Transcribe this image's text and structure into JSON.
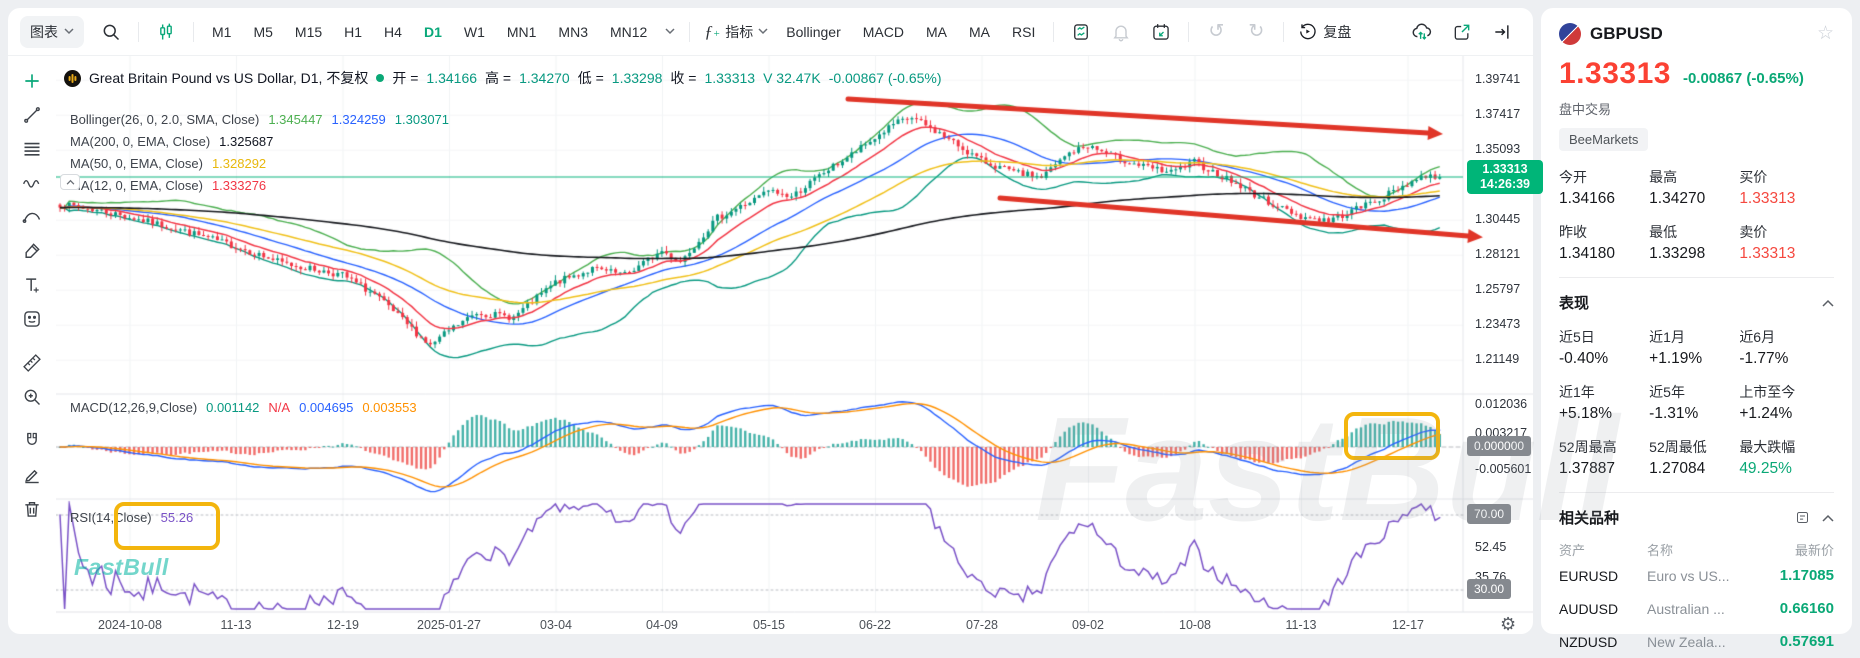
{
  "app": {
    "watermark_big": "FastBull",
    "watermark_logo": "FastBull"
  },
  "toolbar": {
    "chart_menu_label": "图表",
    "timeframes": [
      "M1",
      "M5",
      "M15",
      "H1",
      "H4",
      "D1",
      "W1",
      "MN1",
      "MN3",
      "MN12"
    ],
    "active_timeframe": "D1",
    "indicators_label": "指标",
    "indicator_shortcuts": [
      "Bollinger",
      "MACD",
      "MA",
      "MA",
      "RSI"
    ],
    "replay_label": "复盘"
  },
  "chart": {
    "header": {
      "title": "Great Britain Pound vs US Dollar, D1, 不复权",
      "open_label": "开 =",
      "open": "1.34166",
      "high_label": "高 =",
      "high": "1.34270",
      "low_label": "低 =",
      "low": "1.33298",
      "close_label": "收 =",
      "close": "1.33313",
      "volume": "V 32.47K",
      "change": "-0.00867 (-0.65%)"
    },
    "legends": {
      "bollinger": {
        "name": "Bollinger(26, 0, 2.0, SMA, Close)",
        "upper": "1.345447",
        "middle": "1.324259",
        "lower": "1.303071"
      },
      "ma200": {
        "name": "MA(200, 0, EMA, Close)",
        "value": "1.325687"
      },
      "ma50": {
        "name": "MA(50, 0, EMA, Close)",
        "value": "1.328292"
      },
      "ma12": {
        "name": "MA(12, 0, EMA, Close)",
        "value": "1.333276"
      },
      "macd": {
        "name": "MACD(12,26,9,Close)",
        "macd": "0.001142",
        "na": "N/A",
        "signal": "0.004695",
        "hist": "0.003553"
      },
      "rsi": {
        "name": "RSI(14,Close)",
        "value": "55.26"
      }
    },
    "price_axis": {
      "ticks": [
        "1.39741",
        "1.37417",
        "1.35093",
        "1.30445",
        "1.28121",
        "1.25797",
        "1.23473",
        "1.21149"
      ],
      "last_badge": {
        "price": "1.33313",
        "time": "14:26:39"
      }
    },
    "macd_axis": {
      "ticks": [
        "0.012036",
        "0.003217",
        "-0.005601"
      ],
      "zero_badge": "0.000000"
    },
    "rsi_axis": {
      "upper_badge": "70.00",
      "mid_ticks": [
        "52.45",
        "35.76"
      ],
      "lower_badge": "30.00"
    },
    "time_axis": [
      "2024-10-08",
      "11-13",
      "12-19",
      "2025-01-27",
      "03-04",
      "04-09",
      "05-15",
      "06-22",
      "07-28",
      "09-02",
      "10-08",
      "11-13",
      "12-17"
    ]
  },
  "sidebar": {
    "symbol": "GBPUSD",
    "price": "1.33313",
    "change": "-0.00867  (-0.65%)",
    "session_label": "盘中交易",
    "broker": "BeeMarkets",
    "stats": [
      {
        "label": "今开",
        "value": "1.34166"
      },
      {
        "label": "最高",
        "value": "1.34270"
      },
      {
        "label": "买价",
        "value": "1.33313"
      },
      {
        "label": "昨收",
        "value": "1.34180"
      },
      {
        "label": "最低",
        "value": "1.33298"
      },
      {
        "label": "卖价",
        "value": "1.33313"
      }
    ],
    "performance": {
      "title": "表现",
      "items": [
        {
          "label": "近5日",
          "value": "-0.40%"
        },
        {
          "label": "近1月",
          "value": "+1.19%"
        },
        {
          "label": "近6月",
          "value": "-1.77%"
        },
        {
          "label": "近1年",
          "value": "+5.18%"
        },
        {
          "label": "近5年",
          "value": "-1.31%"
        },
        {
          "label": "上市至今",
          "value": "+1.24%"
        },
        {
          "label": "52周最高",
          "value": "1.37887"
        },
        {
          "label": "52周最低",
          "value": "1.27084"
        },
        {
          "label": "最大跌幅",
          "value": "49.25%"
        }
      ]
    },
    "related": {
      "title": "相关品种",
      "columns": [
        "资产",
        "名称",
        "最新价"
      ],
      "rows": [
        {
          "asset": "EURUSD",
          "name": "Euro vs US...",
          "price": "1.17085"
        },
        {
          "asset": "AUDUSD",
          "name": "Australian ...",
          "price": "0.66160"
        },
        {
          "asset": "NZDUSD",
          "name": "New Zeala...",
          "price": "0.57691"
        }
      ]
    }
  },
  "chart_data": {
    "type": "candlestick",
    "symbol": "GBPUSD",
    "timeframe": "D1",
    "last_bar": {
      "open": 1.34166,
      "high": 1.3427,
      "low": 1.33298,
      "close": 1.33313,
      "volume": "32.47K",
      "change": -0.00867,
      "change_pct": "-0.65%"
    },
    "price_axis_ticks": [
      1.39741,
      1.37417,
      1.35093,
      1.30445,
      1.28121,
      1.25797,
      1.23473,
      1.21149
    ],
    "current_price": 1.33313,
    "time_ticks": [
      "2024-10-08",
      "11-13",
      "12-19",
      "2025-01-27",
      "03-04",
      "04-09",
      "05-15",
      "06-22",
      "07-28",
      "09-02",
      "10-08",
      "11-13",
      "12-17"
    ],
    "indicators": {
      "bollinger": {
        "params": [
          26,
          0,
          2.0
        ],
        "upper": 1.345447,
        "middle": 1.324259,
        "lower": 1.303071
      },
      "ma200": 1.325687,
      "ma50": 1.328292,
      "ma12": 1.333276,
      "macd": {
        "params": [
          12,
          26,
          9
        ],
        "macd": 0.001142,
        "signal": 0.004695,
        "hist": 0.003553
      },
      "rsi": {
        "period": 14,
        "value": 55.26,
        "levels": [
          70,
          30
        ]
      }
    },
    "n_bars": 299,
    "close_anchors": [
      [
        0,
        1.315
      ],
      [
        10,
        1.31
      ],
      [
        25,
        1.299
      ],
      [
        38,
        1.287
      ],
      [
        48,
        1.276
      ],
      [
        61,
        1.268
      ],
      [
        68,
        1.255
      ],
      [
        74,
        1.238
      ],
      [
        80,
        1.221
      ],
      [
        84,
        1.231
      ],
      [
        90,
        1.243
      ],
      [
        98,
        1.24
      ],
      [
        107,
        1.263
      ],
      [
        115,
        1.272
      ],
      [
        122,
        1.268
      ],
      [
        130,
        1.284
      ],
      [
        134,
        1.277
      ],
      [
        142,
        1.306
      ],
      [
        150,
        1.318
      ],
      [
        153,
        1.324
      ],
      [
        158,
        1.32
      ],
      [
        165,
        1.336
      ],
      [
        172,
        1.35
      ],
      [
        180,
        1.368
      ],
      [
        184,
        1.3725
      ],
      [
        190,
        1.362
      ],
      [
        195,
        1.352
      ],
      [
        199,
        1.344
      ],
      [
        206,
        1.336
      ],
      [
        212,
        1.333
      ],
      [
        218,
        1.349
      ],
      [
        222,
        1.354
      ],
      [
        228,
        1.346
      ],
      [
        234,
        1.34
      ],
      [
        240,
        1.336
      ],
      [
        245,
        1.343
      ],
      [
        252,
        1.332
      ],
      [
        260,
        1.318
      ],
      [
        268,
        1.307
      ],
      [
        274,
        1.304
      ],
      [
        280,
        1.312
      ],
      [
        286,
        1.32
      ],
      [
        291,
        1.329
      ],
      [
        295,
        1.334
      ],
      [
        298,
        1.33313
      ]
    ],
    "annotations": {
      "channel_upper": [
        [
          792,
          43
        ],
        [
          1372,
          77
        ]
      ],
      "channel_lower": [
        [
          944,
          142
        ],
        [
          1412,
          180
        ]
      ]
    }
  }
}
